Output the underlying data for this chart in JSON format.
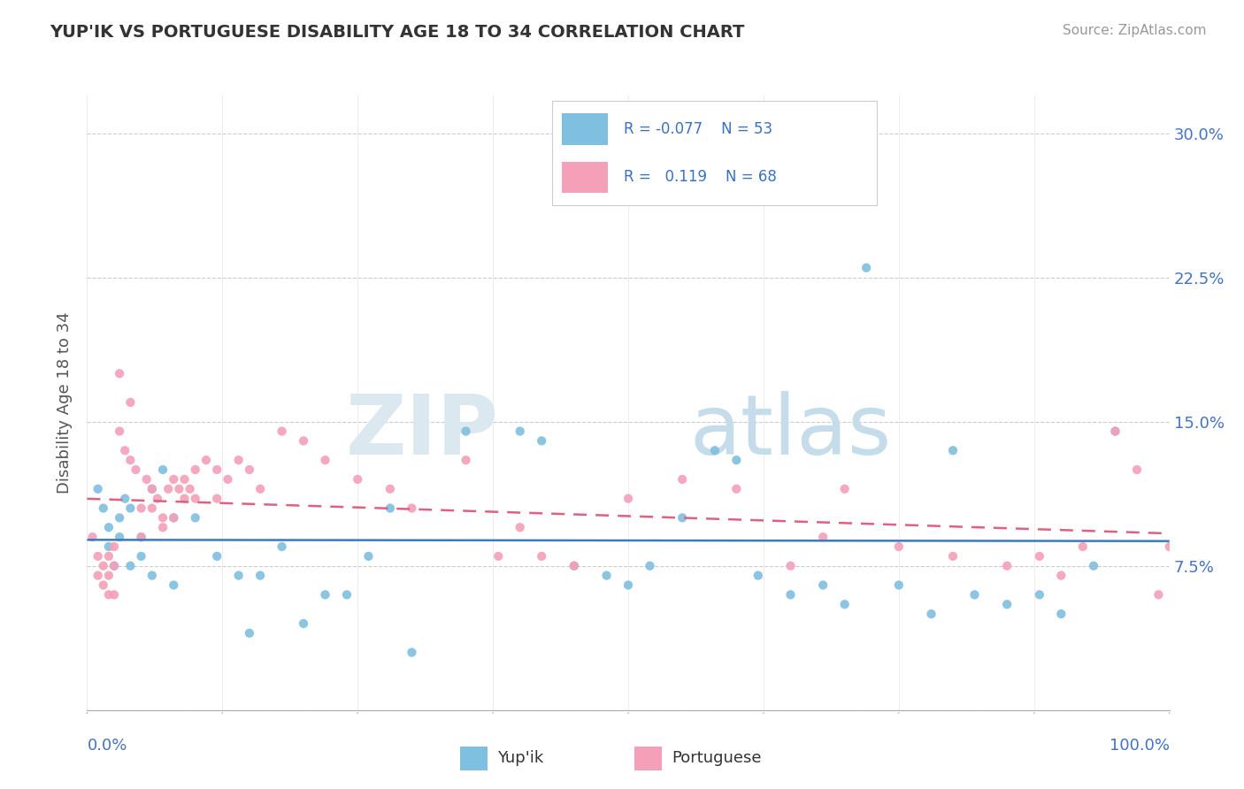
{
  "title": "YUP'IK VS PORTUGUESE DISABILITY AGE 18 TO 34 CORRELATION CHART",
  "source": "Source: ZipAtlas.com",
  "ylabel": "Disability Age 18 to 34",
  "xlim": [
    0,
    100
  ],
  "ylim": [
    0,
    32
  ],
  "yticks": [
    0,
    7.5,
    15.0,
    22.5,
    30.0
  ],
  "ytick_labels": [
    "",
    "7.5%",
    "15.0%",
    "22.5%",
    "30.0%"
  ],
  "yupik_color": "#7fbfdf",
  "portuguese_color": "#f4a0b8",
  "yupik_line_color": "#3a7abf",
  "portuguese_line_color": "#e06080",
  "background_color": "#ffffff",
  "title_color": "#333333",
  "source_color": "#999999",
  "axis_label_color": "#4472c4",
  "ylabel_color": "#555555",
  "yupik_scatter": [
    [
      1,
      11.5
    ],
    [
      1.5,
      10.5
    ],
    [
      2,
      9.5
    ],
    [
      2,
      8.5
    ],
    [
      2.5,
      7.5
    ],
    [
      3,
      10.0
    ],
    [
      3,
      9.0
    ],
    [
      3.5,
      11.0
    ],
    [
      4,
      10.5
    ],
    [
      4,
      7.5
    ],
    [
      5,
      9.0
    ],
    [
      5,
      8.0
    ],
    [
      6,
      11.5
    ],
    [
      6,
      7.0
    ],
    [
      7,
      12.5
    ],
    [
      8,
      10.0
    ],
    [
      8,
      6.5
    ],
    [
      10,
      10.0
    ],
    [
      12,
      8.0
    ],
    [
      14,
      7.0
    ],
    [
      15,
      4.0
    ],
    [
      16,
      7.0
    ],
    [
      18,
      8.5
    ],
    [
      20,
      4.5
    ],
    [
      22,
      6.0
    ],
    [
      24,
      6.0
    ],
    [
      26,
      8.0
    ],
    [
      28,
      10.5
    ],
    [
      30,
      3.0
    ],
    [
      35,
      14.5
    ],
    [
      40,
      14.5
    ],
    [
      42,
      14.0
    ],
    [
      45,
      7.5
    ],
    [
      48,
      7.0
    ],
    [
      50,
      6.5
    ],
    [
      52,
      7.5
    ],
    [
      55,
      10.0
    ],
    [
      58,
      13.5
    ],
    [
      60,
      13.0
    ],
    [
      62,
      7.0
    ],
    [
      65,
      6.0
    ],
    [
      68,
      6.5
    ],
    [
      70,
      5.5
    ],
    [
      72,
      23.0
    ],
    [
      75,
      6.5
    ],
    [
      78,
      5.0
    ],
    [
      80,
      13.5
    ],
    [
      82,
      6.0
    ],
    [
      85,
      5.5
    ],
    [
      88,
      6.0
    ],
    [
      90,
      5.0
    ],
    [
      93,
      7.5
    ],
    [
      95,
      14.5
    ]
  ],
  "portuguese_scatter": [
    [
      0.5,
      9.0
    ],
    [
      1,
      8.0
    ],
    [
      1,
      7.0
    ],
    [
      1.5,
      7.5
    ],
    [
      1.5,
      6.5
    ],
    [
      2,
      8.0
    ],
    [
      2,
      7.0
    ],
    [
      2,
      6.0
    ],
    [
      2.5,
      8.5
    ],
    [
      2.5,
      7.5
    ],
    [
      2.5,
      6.0
    ],
    [
      3,
      17.5
    ],
    [
      3,
      14.5
    ],
    [
      3.5,
      13.5
    ],
    [
      4,
      16.0
    ],
    [
      4,
      13.0
    ],
    [
      4.5,
      12.5
    ],
    [
      5,
      10.5
    ],
    [
      5,
      9.0
    ],
    [
      5.5,
      12.0
    ],
    [
      6,
      11.5
    ],
    [
      6,
      10.5
    ],
    [
      6.5,
      11.0
    ],
    [
      7,
      10.0
    ],
    [
      7,
      9.5
    ],
    [
      7.5,
      11.5
    ],
    [
      8,
      12.0
    ],
    [
      8,
      10.0
    ],
    [
      8.5,
      11.5
    ],
    [
      9,
      12.0
    ],
    [
      9,
      11.0
    ],
    [
      9.5,
      11.5
    ],
    [
      10,
      12.5
    ],
    [
      10,
      11.0
    ],
    [
      11,
      13.0
    ],
    [
      12,
      12.5
    ],
    [
      12,
      11.0
    ],
    [
      13,
      12.0
    ],
    [
      14,
      13.0
    ],
    [
      15,
      12.5
    ],
    [
      16,
      11.5
    ],
    [
      18,
      14.5
    ],
    [
      20,
      14.0
    ],
    [
      22,
      13.0
    ],
    [
      25,
      12.0
    ],
    [
      28,
      11.5
    ],
    [
      30,
      10.5
    ],
    [
      35,
      13.0
    ],
    [
      38,
      8.0
    ],
    [
      40,
      9.5
    ],
    [
      42,
      8.0
    ],
    [
      45,
      7.5
    ],
    [
      50,
      11.0
    ],
    [
      55,
      12.0
    ],
    [
      60,
      11.5
    ],
    [
      65,
      7.5
    ],
    [
      68,
      9.0
    ],
    [
      70,
      11.5
    ],
    [
      75,
      8.5
    ],
    [
      80,
      8.0
    ],
    [
      85,
      7.5
    ],
    [
      88,
      8.0
    ],
    [
      90,
      7.0
    ],
    [
      92,
      8.5
    ],
    [
      95,
      14.5
    ],
    [
      97,
      12.5
    ],
    [
      99,
      6.0
    ],
    [
      100,
      8.5
    ]
  ]
}
